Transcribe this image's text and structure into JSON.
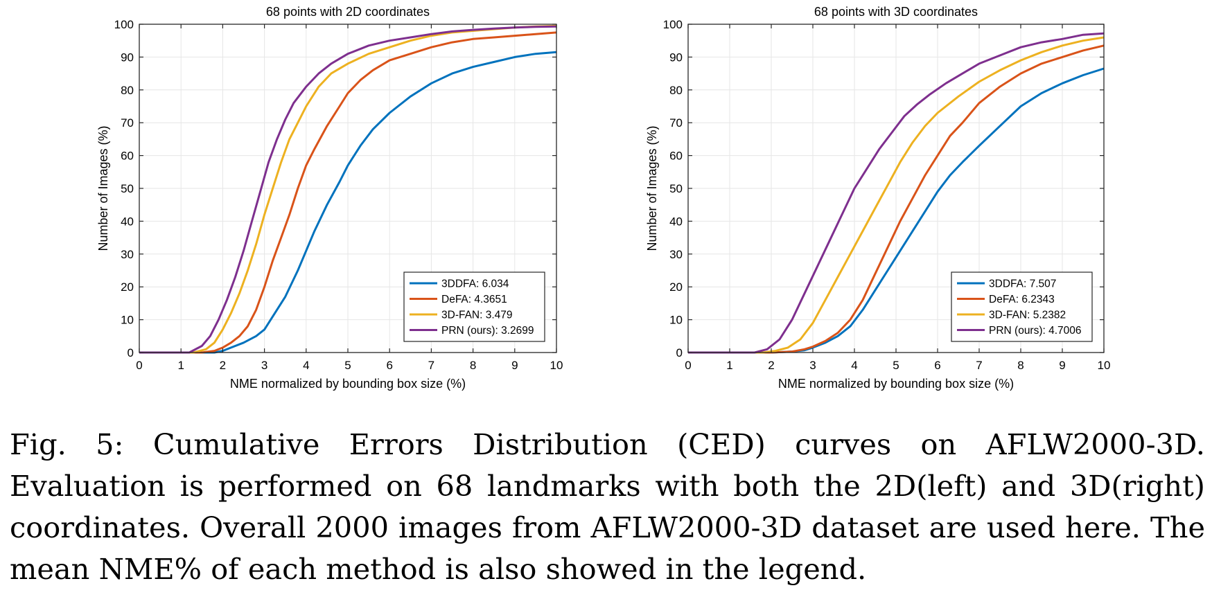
{
  "colors": {
    "3DDFA": "#0072BD",
    "DeFA": "#D95319",
    "3D-FAN": "#EDB120",
    "PRN": "#7E2F8E",
    "grid": "#e6e6e6",
    "axis": "#262626"
  },
  "chart_data": [
    {
      "type": "line",
      "title": "68 points with 2D coordinates",
      "xlabel": "NME normalized by bounding box size (%)",
      "ylabel": "Number of Images (%)",
      "xlim": [
        0,
        10
      ],
      "ylim": [
        0,
        100
      ],
      "xticks": [
        "0",
        "1",
        "2",
        "3",
        "4",
        "5",
        "6",
        "7",
        "8",
        "9",
        "10"
      ],
      "yticks": [
        "0",
        "10",
        "20",
        "30",
        "40",
        "50",
        "60",
        "70",
        "80",
        "90",
        "100"
      ],
      "grid": true,
      "legend_position": "bottom-right",
      "series": [
        {
          "name": "3DDFA: 6.034",
          "color_key": "3DDFA",
          "x": [
            0,
            1.5,
            1.8,
            2.0,
            2.2,
            2.5,
            2.8,
            3.0,
            3.2,
            3.5,
            3.8,
            4.0,
            4.2,
            4.5,
            4.8,
            5.0,
            5.3,
            5.6,
            6.0,
            6.5,
            7.0,
            7.5,
            8.0,
            8.5,
            9.0,
            9.5,
            10.0
          ],
          "y": [
            0,
            0,
            0,
            0.5,
            1.5,
            3,
            5,
            7,
            11,
            17,
            25,
            31,
            37,
            45,
            52,
            57,
            63,
            68,
            73,
            78,
            82,
            85,
            87,
            88.5,
            90,
            91,
            91.5
          ]
        },
        {
          "name": "DeFA: 4.3651",
          "color_key": "DeFA",
          "x": [
            0,
            1.5,
            1.8,
            2.0,
            2.2,
            2.4,
            2.6,
            2.8,
            3.0,
            3.2,
            3.4,
            3.6,
            3.8,
            4.0,
            4.2,
            4.5,
            4.8,
            5.0,
            5.3,
            5.6,
            6.0,
            6.5,
            7.0,
            7.5,
            8.0,
            8.5,
            9.0,
            9.5,
            10.0
          ],
          "y": [
            0,
            0,
            0.5,
            1.5,
            3,
            5,
            8,
            13,
            20,
            28,
            35,
            42,
            50,
            57,
            62,
            69,
            75,
            79,
            83,
            86,
            89,
            91,
            93,
            94.5,
            95.5,
            96,
            96.5,
            97,
            97.5
          ]
        },
        {
          "name": "3D-FAN: 3.479",
          "color_key": "3D-FAN",
          "x": [
            0,
            1.3,
            1.6,
            1.8,
            2.0,
            2.2,
            2.4,
            2.6,
            2.8,
            3.0,
            3.2,
            3.4,
            3.6,
            3.8,
            4.0,
            4.3,
            4.6,
            5.0,
            5.5,
            6.0,
            6.5,
            7.0,
            7.5,
            8.0,
            8.5,
            9.0,
            9.5,
            10.0
          ],
          "y": [
            0,
            0,
            1,
            3,
            7,
            12,
            18,
            25,
            33,
            42,
            50,
            58,
            65,
            70,
            75,
            81,
            85,
            88,
            91,
            93,
            95,
            96.5,
            97.5,
            98,
            98.5,
            99,
            99.3,
            99.5
          ]
        },
        {
          "name": "PRN (ours): 3.2699",
          "color_key": "PRN",
          "x": [
            0,
            1.2,
            1.5,
            1.7,
            1.9,
            2.1,
            2.3,
            2.5,
            2.7,
            2.9,
            3.1,
            3.3,
            3.5,
            3.7,
            4.0,
            4.3,
            4.6,
            5.0,
            5.5,
            6.0,
            6.5,
            7.0,
            7.5,
            8.0,
            8.5,
            9.0,
            9.5,
            10.0
          ],
          "y": [
            0,
            0,
            2,
            5,
            10,
            16,
            23,
            31,
            40,
            49,
            58,
            65,
            71,
            76,
            81,
            85,
            88,
            91,
            93.5,
            95,
            96,
            97,
            97.8,
            98.3,
            98.7,
            99,
            99.2,
            99.3
          ]
        }
      ]
    },
    {
      "type": "line",
      "title": "68 points with 3D coordinates",
      "xlabel": "NME normalized by bounding box size (%)",
      "ylabel": "Number of Images (%)",
      "xlim": [
        0,
        10
      ],
      "ylim": [
        0,
        100
      ],
      "xticks": [
        "0",
        "1",
        "2",
        "3",
        "4",
        "5",
        "6",
        "7",
        "8",
        "9",
        "10"
      ],
      "yticks": [
        "0",
        "10",
        "20",
        "30",
        "40",
        "50",
        "60",
        "70",
        "80",
        "90",
        "100"
      ],
      "grid": true,
      "legend_position": "bottom-right",
      "series": [
        {
          "name": "3DDFA: 7.507",
          "color_key": "3DDFA",
          "x": [
            0,
            2.0,
            2.5,
            2.8,
            3.0,
            3.3,
            3.6,
            3.9,
            4.2,
            4.5,
            4.8,
            5.1,
            5.4,
            5.7,
            6.0,
            6.3,
            6.6,
            7.0,
            7.5,
            8.0,
            8.5,
            9.0,
            9.5,
            10.0
          ],
          "y": [
            0,
            0,
            0.3,
            0.7,
            1.5,
            3,
            5,
            8,
            13,
            19,
            25,
            31,
            37,
            43,
            49,
            54,
            58,
            63,
            69,
            75,
            79,
            82,
            84.5,
            86.5
          ]
        },
        {
          "name": "DeFA: 6.2343",
          "color_key": "DeFA",
          "x": [
            0,
            2.0,
            2.5,
            2.8,
            3.0,
            3.3,
            3.6,
            3.9,
            4.2,
            4.5,
            4.8,
            5.1,
            5.4,
            5.7,
            6.0,
            6.3,
            6.6,
            7.0,
            7.5,
            8.0,
            8.5,
            9.0,
            9.5,
            10.0
          ],
          "y": [
            0,
            0,
            0.3,
            1,
            1.8,
            3.5,
            6,
            10,
            16,
            24,
            32,
            40,
            47,
            54,
            60,
            66,
            70,
            76,
            81,
            85,
            88,
            90,
            92,
            93.5
          ]
        },
        {
          "name": "3D-FAN: 5.2382",
          "color_key": "3D-FAN",
          "x": [
            0,
            1.8,
            2.1,
            2.4,
            2.7,
            3.0,
            3.3,
            3.6,
            3.9,
            4.2,
            4.5,
            4.8,
            5.1,
            5.4,
            5.7,
            6.0,
            6.5,
            7.0,
            7.5,
            8.0,
            8.5,
            9.0,
            9.5,
            10.0
          ],
          "y": [
            0,
            0,
            0.5,
            1.5,
            4,
            9,
            16,
            23,
            30,
            37,
            44,
            51,
            58,
            64,
            69,
            73,
            78,
            82.5,
            86,
            89,
            91.5,
            93.5,
            95,
            96
          ]
        },
        {
          "name": "PRN (ours): 4.7006",
          "color_key": "PRN",
          "x": [
            0,
            1.6,
            1.9,
            2.2,
            2.5,
            2.8,
            3.1,
            3.4,
            3.7,
            4.0,
            4.3,
            4.6,
            4.9,
            5.2,
            5.5,
            5.8,
            6.2,
            6.6,
            7.0,
            7.5,
            8.0,
            8.5,
            9.0,
            9.5,
            10.0
          ],
          "y": [
            0,
            0,
            1,
            4,
            10,
            18,
            26,
            34,
            42,
            50,
            56,
            62,
            67,
            72,
            75.5,
            78.5,
            82,
            85,
            88,
            90.5,
            93,
            94.5,
            95.5,
            96.8,
            97.2
          ]
        }
      ]
    }
  ],
  "caption": "Fig. 5: Cumulative Errors Distribution (CED) curves on AFLW2000-3D. Evaluation is performed on 68 landmarks with both the 2D(left) and 3D(right) coordinates. Overall 2000 images from AFLW2000-3D dataset are used here. The mean NME% of each method is also showed in the legend."
}
